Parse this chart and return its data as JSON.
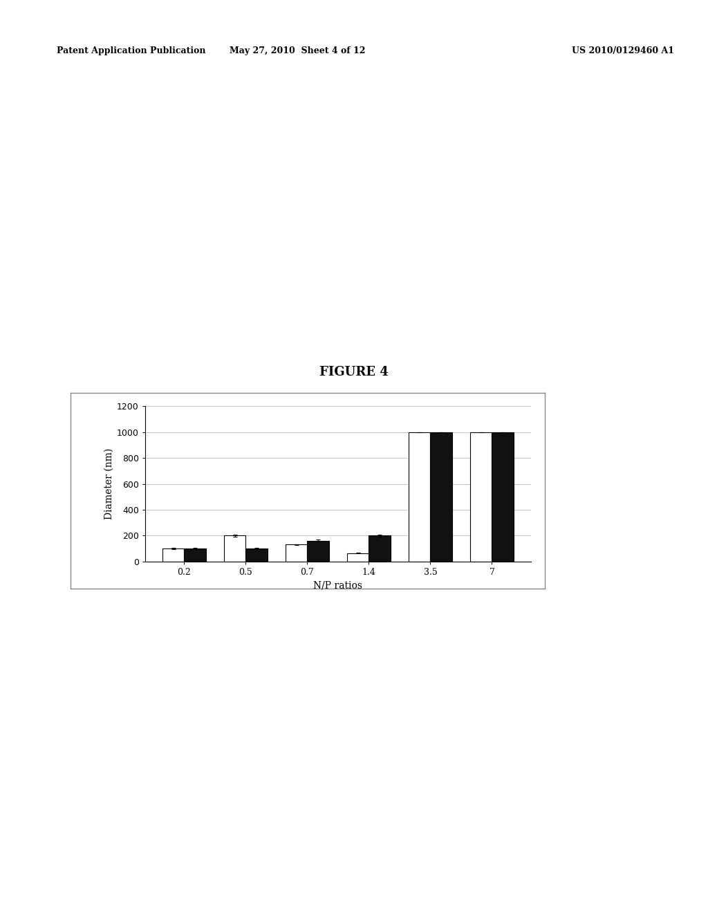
{
  "title": "FIGURE 4",
  "xlabel": "N/P ratios",
  "ylabel": "Diameter (nm)",
  "categories": [
    "0.2",
    "0.5",
    "0.7",
    "1.4",
    "3.5",
    "7"
  ],
  "white_bars": [
    100,
    200,
    130,
    65,
    1000,
    1000
  ],
  "black_bars": [
    100,
    100,
    160,
    200,
    1000,
    1000
  ],
  "white_errors": [
    5,
    8,
    5,
    4,
    0,
    0
  ],
  "black_errors": [
    5,
    5,
    8,
    8,
    0,
    0
  ],
  "ylim": [
    0,
    1200
  ],
  "yticks": [
    0,
    200,
    400,
    600,
    800,
    1000,
    1200
  ],
  "bar_width": 0.35,
  "white_color": "#ffffff",
  "black_color": "#111111",
  "bar_edge_color": "#000000",
  "background_color": "#ffffff",
  "grid_color": "#bbbbbb",
  "title_fontsize": 13,
  "axis_fontsize": 10,
  "tick_fontsize": 9,
  "header_left": "Patent Application Publication",
  "header_mid": "May 27, 2010  Sheet 4 of 12",
  "header_right": "US 2010/0129460 A1"
}
